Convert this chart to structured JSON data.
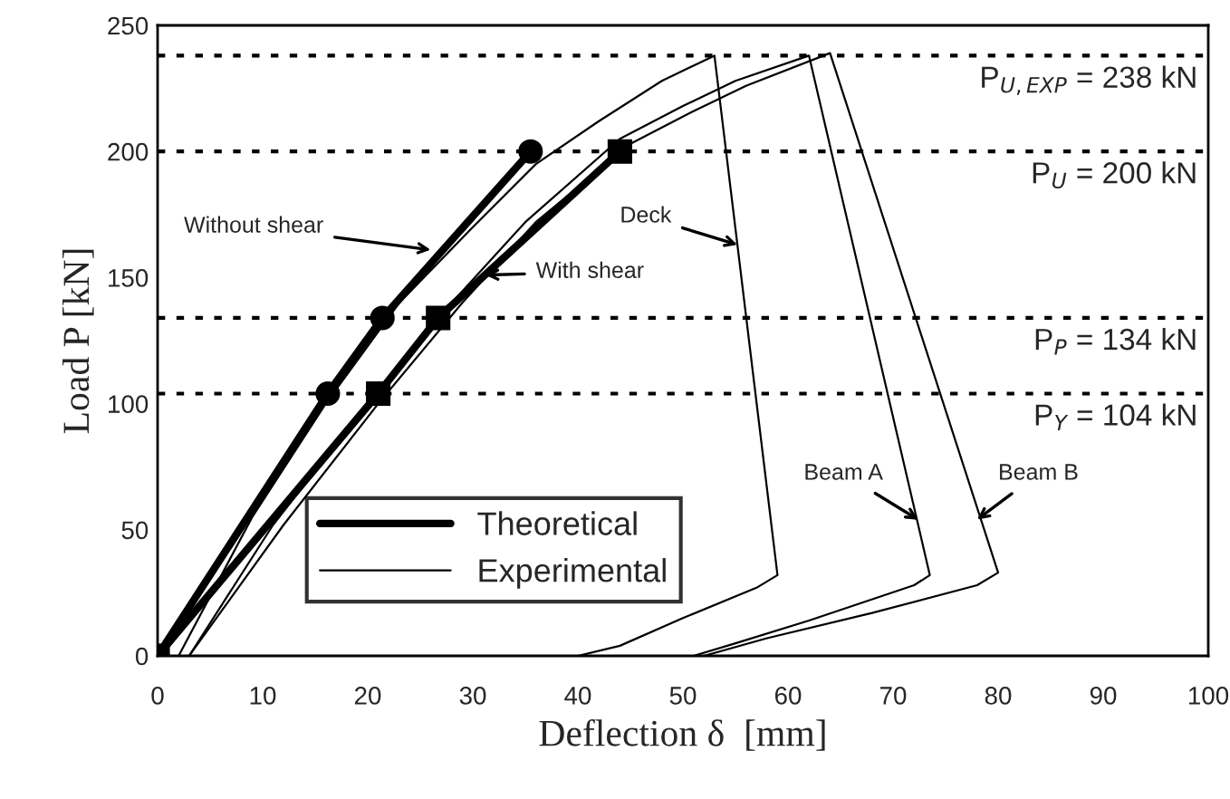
{
  "chart_data": {
    "type": "line",
    "xlabel": "Deflection δ  [mm]",
    "ylabel": "Load P [kN]",
    "xlim": [
      0,
      100
    ],
    "ylim": [
      0,
      250
    ],
    "xticks": [
      0,
      10,
      20,
      30,
      40,
      50,
      60,
      70,
      80,
      90,
      100
    ],
    "yticks": [
      0,
      50,
      100,
      150,
      200,
      250
    ],
    "grid": false,
    "legend": "bottom",
    "series": [
      {
        "name": "Theoretical",
        "color": "#000000",
        "marker": "circle",
        "x": [
          0,
          16.2,
          21.4,
          35.5
        ],
        "values": [
          0,
          104,
          134,
          200
        ]
      },
      {
        "color": "#000000",
        "marker": "square",
        "x": [
          0,
          21,
          26.7,
          44
        ],
        "values": [
          0,
          104,
          134,
          200
        ]
      },
      {
        "name": "Experimental",
        "color": "#000000",
        "marker": "none",
        "x": [
          2,
          9,
          16,
          23,
          30,
          36,
          42,
          48,
          53,
          59,
          57,
          50,
          44,
          40
        ],
        "values": [
          0,
          55,
          100,
          140,
          170,
          195,
          212,
          228,
          238,
          32,
          27,
          15,
          4,
          0
        ]
      },
      {
        "color": "#000000",
        "marker": "none",
        "x": [
          3,
          11,
          20,
          28,
          35,
          44,
          50,
          55,
          62,
          73.5,
          72,
          62,
          55,
          51
        ],
        "values": [
          0,
          52,
          100,
          140,
          172,
          205,
          218,
          228,
          238,
          32,
          28,
          14,
          5,
          0
        ]
      },
      {
        "color": "#000000",
        "marker": "none",
        "x": [
          3,
          12,
          21,
          29,
          36,
          45,
          51,
          56,
          64,
          80,
          78,
          68,
          58,
          52
        ],
        "values": [
          0,
          52,
          100,
          140,
          172,
          203,
          216,
          226,
          239,
          33,
          28,
          17,
          7,
          0
        ]
      }
    ],
    "ref_lines": [
      {
        "axis": "y",
        "value": 238,
        "label": "P$_{U,EXP}$ = 238 kN",
        "line_style": "dotted"
      },
      {
        "axis": "y",
        "value": 200,
        "label": "P$_{U}$ = 200 kN",
        "line_style": "dotted"
      },
      {
        "axis": "y",
        "value": 134,
        "label": "P$_{P}$ = 134 kN",
        "line_style": "dotted"
      },
      {
        "axis": "y",
        "value": 104,
        "label": "P$_{Y}$ = 104 kN",
        "line_style": "dotted"
      }
    ],
    "annotations": [
      {
        "text": "Without shear",
        "x": 26,
        "y": 161
      },
      {
        "text": "With shear",
        "x": 31.2,
        "y": 151
      },
      {
        "text": "Deck",
        "x": 55.2,
        "y": 163
      },
      {
        "text": "Beam A",
        "x": 72.4,
        "y": 54
      },
      {
        "text": "Beam B",
        "x": 78,
        "y": 54
      }
    ]
  }
}
